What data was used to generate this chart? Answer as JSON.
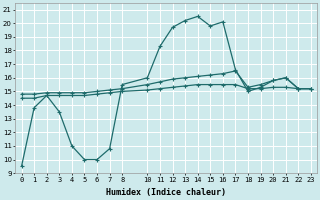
{
  "xlabel": "Humidex (Indice chaleur)",
  "bg_color": "#ceeaec",
  "grid_color": "#ffffff",
  "line_color": "#1e6b6b",
  "xlim": [
    -0.5,
    23.5
  ],
  "ylim": [
    9,
    21.5
  ],
  "yticks": [
    9,
    10,
    11,
    12,
    13,
    14,
    15,
    16,
    17,
    18,
    19,
    20,
    21
  ],
  "xticks": [
    0,
    1,
    2,
    3,
    4,
    5,
    6,
    7,
    8,
    10,
    11,
    12,
    13,
    14,
    15,
    16,
    17,
    18,
    19,
    20,
    21,
    22,
    23
  ],
  "line1_x": [
    0,
    1,
    2,
    3,
    4,
    5,
    6,
    7,
    8,
    10,
    11,
    12,
    13,
    14,
    15,
    16,
    17,
    18,
    19,
    20,
    21,
    22,
    23
  ],
  "line1_y": [
    9.5,
    13.8,
    14.7,
    13.5,
    11.0,
    10.0,
    10.0,
    10.8,
    15.5,
    16.0,
    18.3,
    19.7,
    20.2,
    20.5,
    19.8,
    20.1,
    16.6,
    15.0,
    15.3,
    15.8,
    16.0,
    15.2,
    15.2
  ],
  "line2_x": [
    0,
    1,
    2,
    3,
    4,
    5,
    6,
    7,
    8,
    10,
    11,
    12,
    13,
    14,
    15,
    16,
    17,
    18,
    19,
    20,
    21,
    22,
    23
  ],
  "line2_y": [
    14.8,
    14.8,
    14.9,
    14.9,
    14.9,
    14.9,
    15.0,
    15.1,
    15.2,
    15.5,
    15.7,
    15.9,
    16.0,
    16.1,
    16.2,
    16.3,
    16.5,
    15.3,
    15.5,
    15.8,
    16.0,
    15.2,
    15.2
  ],
  "line3_x": [
    0,
    1,
    2,
    3,
    4,
    5,
    6,
    7,
    8,
    10,
    11,
    12,
    13,
    14,
    15,
    16,
    17,
    18,
    19,
    20,
    21,
    22,
    23
  ],
  "line3_y": [
    14.5,
    14.5,
    14.7,
    14.7,
    14.7,
    14.7,
    14.8,
    14.9,
    15.0,
    15.1,
    15.2,
    15.3,
    15.4,
    15.5,
    15.5,
    15.5,
    15.5,
    15.2,
    15.2,
    15.3,
    15.3,
    15.2,
    15.2
  ]
}
